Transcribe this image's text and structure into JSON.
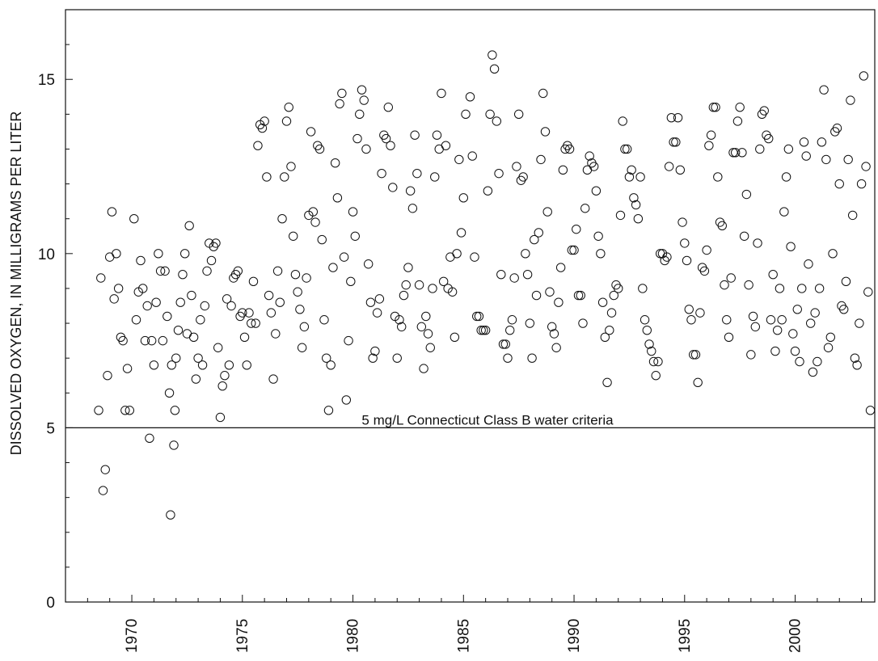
{
  "chart_data": {
    "type": "scatter",
    "title": "",
    "xlabel": "",
    "ylabel": "DISSOLVED OXYGEN, IN MILLIGRAMS PER LITER",
    "xlim": [
      1967,
      2003.6
    ],
    "ylim": [
      0,
      17
    ],
    "x_ticks": [
      1970,
      1975,
      1980,
      1985,
      1990,
      1995,
      2000
    ],
    "y_ticks": [
      0,
      5,
      10,
      15
    ],
    "grid": false,
    "legend": "none",
    "marker": "open-circle",
    "reference_line": {
      "y": 5,
      "label": "5 mg/L Connecticut Class B water criteria"
    },
    "points": [
      [
        1968.5,
        5.5
      ],
      [
        1968.6,
        9.3
      ],
      [
        1968.7,
        3.2
      ],
      [
        1968.8,
        3.8
      ],
      [
        1968.9,
        6.5
      ],
      [
        1969.0,
        9.9
      ],
      [
        1969.1,
        11.2
      ],
      [
        1969.2,
        8.7
      ],
      [
        1969.3,
        10.0
      ],
      [
        1969.4,
        9.0
      ],
      [
        1969.5,
        7.6
      ],
      [
        1969.6,
        7.5
      ],
      [
        1969.7,
        5.5
      ],
      [
        1969.8,
        6.7
      ],
      [
        1969.9,
        5.5
      ],
      [
        1970.1,
        11.0
      ],
      [
        1970.2,
        8.1
      ],
      [
        1970.3,
        8.9
      ],
      [
        1970.4,
        9.8
      ],
      [
        1970.5,
        9.0
      ],
      [
        1970.6,
        7.5
      ],
      [
        1970.7,
        8.5
      ],
      [
        1970.8,
        4.7
      ],
      [
        1970.9,
        7.5
      ],
      [
        1971.0,
        6.8
      ],
      [
        1971.1,
        8.6
      ],
      [
        1971.2,
        10.0
      ],
      [
        1971.3,
        9.5
      ],
      [
        1971.4,
        7.5
      ],
      [
        1971.5,
        9.5
      ],
      [
        1971.6,
        8.2
      ],
      [
        1971.7,
        6.0
      ],
      [
        1971.75,
        2.5
      ],
      [
        1971.8,
        6.8
      ],
      [
        1971.9,
        4.5
      ],
      [
        1971.95,
        5.5
      ],
      [
        1972.0,
        7.0
      ],
      [
        1972.1,
        7.8
      ],
      [
        1972.2,
        8.6
      ],
      [
        1972.3,
        9.4
      ],
      [
        1972.4,
        10.0
      ],
      [
        1972.5,
        7.7
      ],
      [
        1972.6,
        10.8
      ],
      [
        1972.7,
        8.8
      ],
      [
        1972.8,
        7.6
      ],
      [
        1972.9,
        6.4
      ],
      [
        1973.0,
        7.0
      ],
      [
        1973.1,
        8.1
      ],
      [
        1973.2,
        6.8
      ],
      [
        1973.3,
        8.5
      ],
      [
        1973.4,
        9.5
      ],
      [
        1973.5,
        10.3
      ],
      [
        1973.6,
        9.8
      ],
      [
        1973.7,
        10.2
      ],
      [
        1973.8,
        10.3
      ],
      [
        1973.9,
        7.3
      ],
      [
        1974.0,
        5.3
      ],
      [
        1974.1,
        6.2
      ],
      [
        1974.2,
        6.5
      ],
      [
        1974.3,
        8.7
      ],
      [
        1974.4,
        6.8
      ],
      [
        1974.5,
        8.5
      ],
      [
        1974.6,
        9.3
      ],
      [
        1974.7,
        9.4
      ],
      [
        1974.8,
        9.5
      ],
      [
        1974.9,
        8.2
      ],
      [
        1975.0,
        8.3
      ],
      [
        1975.1,
        7.6
      ],
      [
        1975.2,
        6.8
      ],
      [
        1975.3,
        8.3
      ],
      [
        1975.4,
        8.0
      ],
      [
        1975.5,
        9.2
      ],
      [
        1975.6,
        8.0
      ],
      [
        1975.7,
        13.1
      ],
      [
        1975.8,
        13.7
      ],
      [
        1975.9,
        13.6
      ],
      [
        1976.0,
        13.8
      ],
      [
        1976.1,
        12.2
      ],
      [
        1976.2,
        8.8
      ],
      [
        1976.3,
        8.3
      ],
      [
        1976.4,
        6.4
      ],
      [
        1976.5,
        7.7
      ],
      [
        1976.6,
        9.5
      ],
      [
        1976.7,
        8.6
      ],
      [
        1976.8,
        11.0
      ],
      [
        1976.9,
        12.2
      ],
      [
        1977.0,
        13.8
      ],
      [
        1977.1,
        14.2
      ],
      [
        1977.2,
        12.5
      ],
      [
        1977.3,
        10.5
      ],
      [
        1977.4,
        9.4
      ],
      [
        1977.5,
        8.9
      ],
      [
        1977.6,
        8.4
      ],
      [
        1977.7,
        7.3
      ],
      [
        1977.8,
        7.9
      ],
      [
        1977.9,
        9.3
      ],
      [
        1978.0,
        11.1
      ],
      [
        1978.1,
        13.5
      ],
      [
        1978.2,
        11.2
      ],
      [
        1978.3,
        10.9
      ],
      [
        1978.4,
        13.1
      ],
      [
        1978.5,
        13.0
      ],
      [
        1978.6,
        10.4
      ],
      [
        1978.7,
        8.1
      ],
      [
        1978.8,
        7.0
      ],
      [
        1978.9,
        5.5
      ],
      [
        1979.0,
        6.8
      ],
      [
        1979.1,
        9.6
      ],
      [
        1979.2,
        12.6
      ],
      [
        1979.3,
        11.6
      ],
      [
        1979.4,
        14.3
      ],
      [
        1979.5,
        14.6
      ],
      [
        1979.6,
        9.9
      ],
      [
        1979.7,
        5.8
      ],
      [
        1979.8,
        7.5
      ],
      [
        1979.9,
        9.2
      ],
      [
        1980.0,
        11.2
      ],
      [
        1980.1,
        10.5
      ],
      [
        1980.2,
        13.3
      ],
      [
        1980.3,
        14.0
      ],
      [
        1980.4,
        14.7
      ],
      [
        1980.5,
        14.4
      ],
      [
        1980.6,
        13.0
      ],
      [
        1980.7,
        9.7
      ],
      [
        1980.8,
        8.6
      ],
      [
        1980.9,
        7.0
      ],
      [
        1981.0,
        7.2
      ],
      [
        1981.1,
        8.3
      ],
      [
        1981.2,
        8.7
      ],
      [
        1981.3,
        12.3
      ],
      [
        1981.4,
        13.4
      ],
      [
        1981.5,
        13.3
      ],
      [
        1981.6,
        14.2
      ],
      [
        1981.7,
        13.1
      ],
      [
        1981.8,
        11.9
      ],
      [
        1981.9,
        8.2
      ],
      [
        1982.0,
        7.0
      ],
      [
        1982.1,
        8.1
      ],
      [
        1982.2,
        7.9
      ],
      [
        1982.3,
        8.8
      ],
      [
        1982.4,
        9.1
      ],
      [
        1982.5,
        9.6
      ],
      [
        1982.6,
        11.8
      ],
      [
        1982.7,
        11.3
      ],
      [
        1982.8,
        13.4
      ],
      [
        1982.9,
        12.3
      ],
      [
        1983.0,
        9.1
      ],
      [
        1983.1,
        7.9
      ],
      [
        1983.2,
        6.7
      ],
      [
        1983.3,
        8.2
      ],
      [
        1983.4,
        7.7
      ],
      [
        1983.5,
        7.3
      ],
      [
        1983.6,
        9.0
      ],
      [
        1983.7,
        12.2
      ],
      [
        1983.8,
        13.4
      ],
      [
        1983.9,
        13.0
      ],
      [
        1984.0,
        14.6
      ],
      [
        1984.1,
        9.2
      ],
      [
        1984.2,
        13.1
      ],
      [
        1984.3,
        9.0
      ],
      [
        1984.4,
        9.9
      ],
      [
        1984.5,
        8.9
      ],
      [
        1984.6,
        7.6
      ],
      [
        1984.7,
        10.0
      ],
      [
        1984.8,
        12.7
      ],
      [
        1984.9,
        10.6
      ],
      [
        1985.0,
        11.6
      ],
      [
        1985.1,
        14.0
      ],
      [
        1985.3,
        14.5
      ],
      [
        1985.4,
        12.8
      ],
      [
        1985.5,
        9.9
      ],
      [
        1985.6,
        8.2
      ],
      [
        1985.7,
        8.2
      ],
      [
        1985.8,
        7.8
      ],
      [
        1985.9,
        7.8
      ],
      [
        1986.0,
        7.8
      ],
      [
        1986.1,
        11.8
      ],
      [
        1986.2,
        14.0
      ],
      [
        1986.3,
        15.7
      ],
      [
        1986.4,
        15.3
      ],
      [
        1986.5,
        13.8
      ],
      [
        1986.6,
        12.3
      ],
      [
        1986.7,
        9.4
      ],
      [
        1986.8,
        7.4
      ],
      [
        1986.9,
        7.4
      ],
      [
        1987.0,
        7.0
      ],
      [
        1987.1,
        7.8
      ],
      [
        1987.2,
        8.1
      ],
      [
        1987.3,
        9.3
      ],
      [
        1987.4,
        12.5
      ],
      [
        1987.5,
        14.0
      ],
      [
        1987.6,
        12.1
      ],
      [
        1987.7,
        12.2
      ],
      [
        1987.8,
        10.0
      ],
      [
        1987.9,
        9.4
      ],
      [
        1988.0,
        8.0
      ],
      [
        1988.1,
        7.0
      ],
      [
        1988.2,
        10.4
      ],
      [
        1988.3,
        8.8
      ],
      [
        1988.4,
        10.6
      ],
      [
        1988.5,
        12.7
      ],
      [
        1988.6,
        14.6
      ],
      [
        1988.7,
        13.5
      ],
      [
        1988.8,
        11.2
      ],
      [
        1988.9,
        8.9
      ],
      [
        1989.0,
        7.9
      ],
      [
        1989.1,
        7.7
      ],
      [
        1989.2,
        7.3
      ],
      [
        1989.3,
        8.6
      ],
      [
        1989.4,
        9.6
      ],
      [
        1989.5,
        12.4
      ],
      [
        1989.6,
        13.0
      ],
      [
        1989.7,
        13.1
      ],
      [
        1989.8,
        13.0
      ],
      [
        1989.9,
        10.1
      ],
      [
        1990.0,
        10.1
      ],
      [
        1990.1,
        10.7
      ],
      [
        1990.2,
        8.8
      ],
      [
        1990.3,
        8.8
      ],
      [
        1990.4,
        8.0
      ],
      [
        1990.5,
        11.3
      ],
      [
        1990.6,
        12.4
      ],
      [
        1990.7,
        12.8
      ],
      [
        1990.8,
        12.6
      ],
      [
        1990.9,
        12.5
      ],
      [
        1991.0,
        11.8
      ],
      [
        1991.1,
        10.5
      ],
      [
        1991.2,
        10.0
      ],
      [
        1991.3,
        8.6
      ],
      [
        1991.4,
        7.6
      ],
      [
        1991.5,
        6.3
      ],
      [
        1991.6,
        7.8
      ],
      [
        1991.7,
        8.3
      ],
      [
        1991.8,
        8.8
      ],
      [
        1991.9,
        9.1
      ],
      [
        1992.0,
        9.0
      ],
      [
        1992.1,
        11.1
      ],
      [
        1992.2,
        13.8
      ],
      [
        1992.3,
        13.0
      ],
      [
        1992.4,
        13.0
      ],
      [
        1992.5,
        12.2
      ],
      [
        1992.6,
        12.4
      ],
      [
        1992.7,
        11.6
      ],
      [
        1992.8,
        11.4
      ],
      [
        1992.9,
        11.0
      ],
      [
        1993.0,
        12.2
      ],
      [
        1993.1,
        9.0
      ],
      [
        1993.2,
        8.1
      ],
      [
        1993.3,
        7.8
      ],
      [
        1993.4,
        7.4
      ],
      [
        1993.5,
        7.2
      ],
      [
        1993.6,
        6.9
      ],
      [
        1993.7,
        6.5
      ],
      [
        1993.8,
        6.9
      ],
      [
        1993.9,
        10.0
      ],
      [
        1994.0,
        10.0
      ],
      [
        1994.1,
        9.8
      ],
      [
        1994.2,
        9.9
      ],
      [
        1994.3,
        12.5
      ],
      [
        1994.4,
        13.9
      ],
      [
        1994.5,
        13.2
      ],
      [
        1994.6,
        13.2
      ],
      [
        1994.7,
        13.9
      ],
      [
        1994.8,
        12.4
      ],
      [
        1994.9,
        10.9
      ],
      [
        1995.0,
        10.3
      ],
      [
        1995.1,
        9.8
      ],
      [
        1995.2,
        8.4
      ],
      [
        1995.3,
        8.1
      ],
      [
        1995.4,
        7.1
      ],
      [
        1995.5,
        7.1
      ],
      [
        1995.6,
        6.3
      ],
      [
        1995.7,
        8.3
      ],
      [
        1995.8,
        9.6
      ],
      [
        1995.9,
        9.5
      ],
      [
        1996.0,
        10.1
      ],
      [
        1996.1,
        13.1
      ],
      [
        1996.2,
        13.4
      ],
      [
        1996.3,
        14.2
      ],
      [
        1996.4,
        14.2
      ],
      [
        1996.5,
        12.2
      ],
      [
        1996.6,
        10.9
      ],
      [
        1996.7,
        10.8
      ],
      [
        1996.8,
        9.1
      ],
      [
        1996.9,
        8.1
      ],
      [
        1997.0,
        7.6
      ],
      [
        1997.1,
        9.3
      ],
      [
        1997.2,
        12.9
      ],
      [
        1997.3,
        12.9
      ],
      [
        1997.4,
        13.8
      ],
      [
        1997.5,
        14.2
      ],
      [
        1997.6,
        12.9
      ],
      [
        1997.7,
        10.5
      ],
      [
        1997.8,
        11.7
      ],
      [
        1997.9,
        9.1
      ],
      [
        1998.0,
        7.1
      ],
      [
        1998.1,
        8.2
      ],
      [
        1998.2,
        7.9
      ],
      [
        1998.3,
        10.3
      ],
      [
        1998.4,
        13.0
      ],
      [
        1998.5,
        14.0
      ],
      [
        1998.6,
        14.1
      ],
      [
        1998.7,
        13.4
      ],
      [
        1998.8,
        13.3
      ],
      [
        1998.9,
        8.1
      ],
      [
        1999.0,
        9.4
      ],
      [
        1999.1,
        7.2
      ],
      [
        1999.2,
        7.8
      ],
      [
        1999.3,
        9.0
      ],
      [
        1999.4,
        8.1
      ],
      [
        1999.5,
        11.2
      ],
      [
        1999.6,
        12.2
      ],
      [
        1999.7,
        13.0
      ],
      [
        1999.8,
        10.2
      ],
      [
        1999.9,
        7.7
      ],
      [
        2000.0,
        7.2
      ],
      [
        2000.1,
        8.4
      ],
      [
        2000.2,
        6.9
      ],
      [
        2000.3,
        9.0
      ],
      [
        2000.4,
        13.2
      ],
      [
        2000.5,
        12.8
      ],
      [
        2000.6,
        9.7
      ],
      [
        2000.7,
        8.0
      ],
      [
        2000.8,
        6.6
      ],
      [
        2000.9,
        8.3
      ],
      [
        2001.0,
        6.9
      ],
      [
        2001.1,
        9.0
      ],
      [
        2001.2,
        13.2
      ],
      [
        2001.3,
        14.7
      ],
      [
        2001.4,
        12.7
      ],
      [
        2001.5,
        7.3
      ],
      [
        2001.6,
        7.6
      ],
      [
        2001.7,
        10.0
      ],
      [
        2001.8,
        13.5
      ],
      [
        2001.9,
        13.6
      ],
      [
        2002.0,
        12.0
      ],
      [
        2002.1,
        8.5
      ],
      [
        2002.2,
        8.4
      ],
      [
        2002.3,
        9.2
      ],
      [
        2002.4,
        12.7
      ],
      [
        2002.5,
        14.4
      ],
      [
        2002.6,
        11.1
      ],
      [
        2002.7,
        7.0
      ],
      [
        2002.8,
        6.8
      ],
      [
        2002.9,
        8.0
      ],
      [
        2003.0,
        12.0
      ],
      [
        2003.1,
        15.1
      ],
      [
        2003.2,
        12.5
      ],
      [
        2003.3,
        8.9
      ],
      [
        2003.4,
        5.5
      ]
    ]
  }
}
